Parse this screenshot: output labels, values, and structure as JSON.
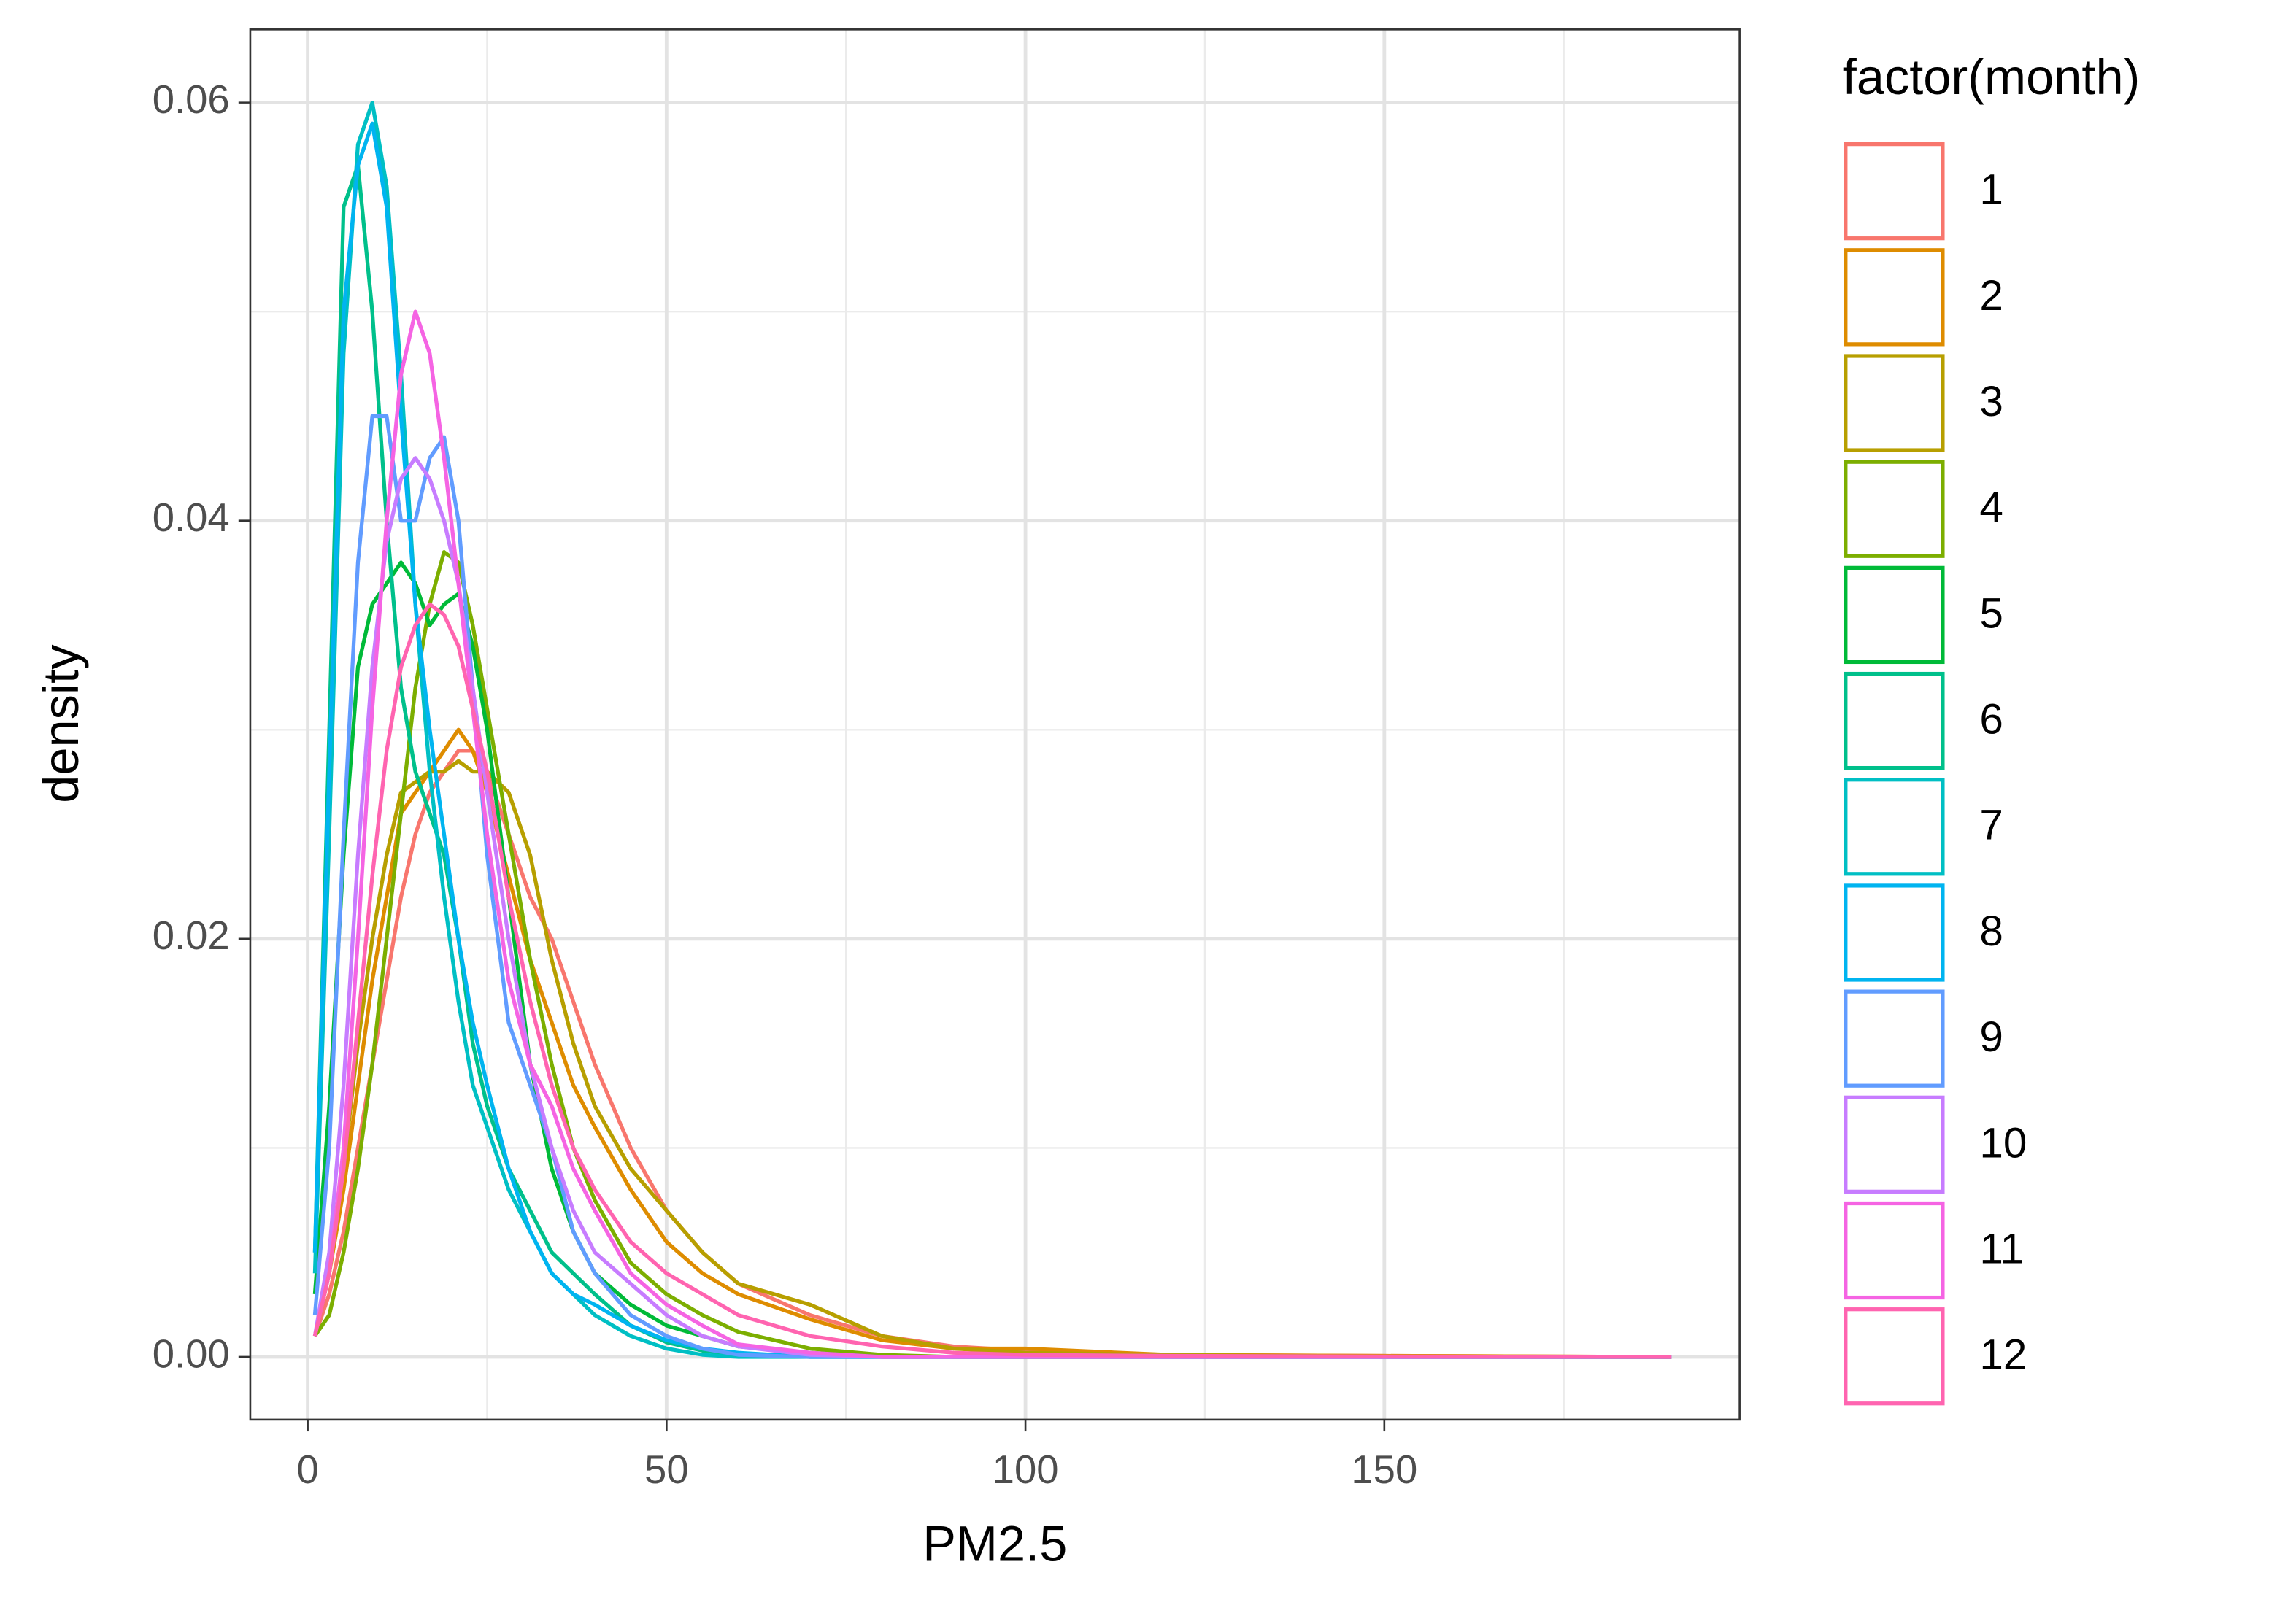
{
  "chart_data": {
    "type": "line",
    "x_label": "PM2.5",
    "y_label": "density",
    "legend_title": "factor(month)",
    "legend_position": "right",
    "grid": true,
    "xlim": [
      -8,
      199.5
    ],
    "ylim": [
      -0.003,
      0.0635
    ],
    "xticks": [
      0,
      50,
      100,
      150
    ],
    "yticks": [
      {
        "value": 0,
        "label": "0.00"
      },
      0.02,
      0.04,
      0.06
    ],
    "x_minor_grid": [
      25,
      75,
      125,
      175
    ],
    "y_minor_grid": [
      0.01,
      0.03,
      0.05
    ],
    "x": [
      1,
      3,
      5,
      7,
      9,
      11,
      13,
      15,
      17,
      19,
      21,
      23,
      25,
      28,
      31,
      34,
      37,
      40,
      45,
      50,
      55,
      60,
      70,
      80,
      90,
      100,
      120,
      150,
      190
    ],
    "series": [
      {
        "name": "1",
        "color": "#F8766D",
        "values": [
          0.001,
          0.003,
          0.006,
          0.01,
          0.014,
          0.018,
          0.022,
          0.025,
          0.027,
          0.028,
          0.029,
          0.029,
          0.028,
          0.025,
          0.022,
          0.02,
          0.017,
          0.014,
          0.01,
          0.007,
          0.005,
          0.0035,
          0.002,
          0.001,
          0.0005,
          0.0003,
          0.0001,
          5e-05,
          0
        ]
      },
      {
        "name": "2",
        "color": "#DE8C00",
        "values": [
          0.001,
          0.004,
          0.008,
          0.013,
          0.018,
          0.022,
          0.026,
          0.027,
          0.028,
          0.029,
          0.03,
          0.029,
          0.027,
          0.023,
          0.019,
          0.016,
          0.013,
          0.011,
          0.008,
          0.0055,
          0.004,
          0.003,
          0.0018,
          0.0008,
          0.0004,
          0.0004,
          0.0001,
          5e-05,
          0
        ]
      },
      {
        "name": "3",
        "color": "#B79F00",
        "values": [
          0.001,
          0.004,
          0.009,
          0.015,
          0.02,
          0.024,
          0.027,
          0.0275,
          0.028,
          0.028,
          0.0285,
          0.028,
          0.028,
          0.027,
          0.024,
          0.019,
          0.015,
          0.012,
          0.009,
          0.007,
          0.005,
          0.0035,
          0.0025,
          0.001,
          0.0004,
          0.0002,
          0.0001,
          0,
          0
        ]
      },
      {
        "name": "4",
        "color": "#7CAE00",
        "values": [
          0.001,
          0.002,
          0.005,
          0.009,
          0.014,
          0.02,
          0.026,
          0.032,
          0.036,
          0.0385,
          0.038,
          0.035,
          0.031,
          0.025,
          0.019,
          0.014,
          0.01,
          0.0075,
          0.0045,
          0.003,
          0.002,
          0.0012,
          0.0004,
          0.0001,
          0,
          0,
          0,
          0,
          0
        ]
      },
      {
        "name": "5",
        "color": "#00BA38",
        "values": [
          0.003,
          0.012,
          0.024,
          0.033,
          0.036,
          0.037,
          0.038,
          0.037,
          0.035,
          0.036,
          0.0365,
          0.034,
          0.03,
          0.022,
          0.014,
          0.009,
          0.006,
          0.004,
          0.0025,
          0.0015,
          0.001,
          0.0005,
          0.0002,
          0,
          0,
          0,
          0,
          0,
          0
        ]
      },
      {
        "name": "6",
        "color": "#00C08B",
        "values": [
          0.005,
          0.03,
          0.055,
          0.057,
          0.05,
          0.04,
          0.032,
          0.028,
          0.026,
          0.024,
          0.02,
          0.015,
          0.012,
          0.009,
          0.007,
          0.005,
          0.004,
          0.003,
          0.0015,
          0.0007,
          0.0003,
          0.0001,
          0,
          0,
          0,
          0,
          0,
          0,
          0
        ]
      },
      {
        "name": "7",
        "color": "#00BFC4",
        "values": [
          0.004,
          0.025,
          0.048,
          0.058,
          0.06,
          0.056,
          0.047,
          0.036,
          0.028,
          0.022,
          0.017,
          0.013,
          0.011,
          0.008,
          0.006,
          0.004,
          0.003,
          0.002,
          0.001,
          0.0004,
          0.0001,
          0,
          0,
          0,
          0,
          0,
          0,
          0,
          0
        ]
      },
      {
        "name": "8",
        "color": "#00B4F0",
        "values": [
          0.005,
          0.028,
          0.05,
          0.057,
          0.059,
          0.055,
          0.045,
          0.036,
          0.03,
          0.025,
          0.02,
          0.016,
          0.013,
          0.009,
          0.006,
          0.004,
          0.003,
          0.0025,
          0.0015,
          0.0008,
          0.0004,
          0.0002,
          0,
          0,
          0,
          0,
          0,
          0,
          0
        ]
      },
      {
        "name": "9",
        "color": "#619CFF",
        "values": [
          0.002,
          0.01,
          0.025,
          0.038,
          0.045,
          0.045,
          0.04,
          0.04,
          0.043,
          0.044,
          0.04,
          0.032,
          0.024,
          0.016,
          0.013,
          0.01,
          0.006,
          0.004,
          0.002,
          0.001,
          0.0004,
          0.0001,
          0,
          0,
          0,
          0,
          0,
          0,
          0
        ]
      },
      {
        "name": "10",
        "color": "#C77CFF",
        "values": [
          0.001,
          0.005,
          0.013,
          0.024,
          0.033,
          0.039,
          0.042,
          0.043,
          0.042,
          0.04,
          0.037,
          0.032,
          0.027,
          0.02,
          0.014,
          0.01,
          0.007,
          0.005,
          0.0035,
          0.002,
          0.001,
          0.0005,
          0.0001,
          0,
          0,
          0,
          0,
          0,
          0
        ]
      },
      {
        "name": "11",
        "color": "#F564E3",
        "values": [
          0.001,
          0.004,
          0.01,
          0.02,
          0.031,
          0.04,
          0.047,
          0.05,
          0.048,
          0.043,
          0.037,
          0.031,
          0.025,
          0.018,
          0.014,
          0.012,
          0.009,
          0.007,
          0.004,
          0.0025,
          0.0015,
          0.0006,
          0.0002,
          0,
          0,
          0,
          0,
          0,
          0
        ]
      },
      {
        "name": "12",
        "color": "#FF64B0",
        "values": [
          0.001,
          0.004,
          0.009,
          0.016,
          0.023,
          0.029,
          0.033,
          0.035,
          0.036,
          0.0355,
          0.034,
          0.031,
          0.028,
          0.022,
          0.017,
          0.013,
          0.01,
          0.008,
          0.0055,
          0.004,
          0.003,
          0.002,
          0.001,
          0.0005,
          0.0002,
          0.0001,
          5e-05,
          2e-05,
          0
        ]
      }
    ]
  }
}
